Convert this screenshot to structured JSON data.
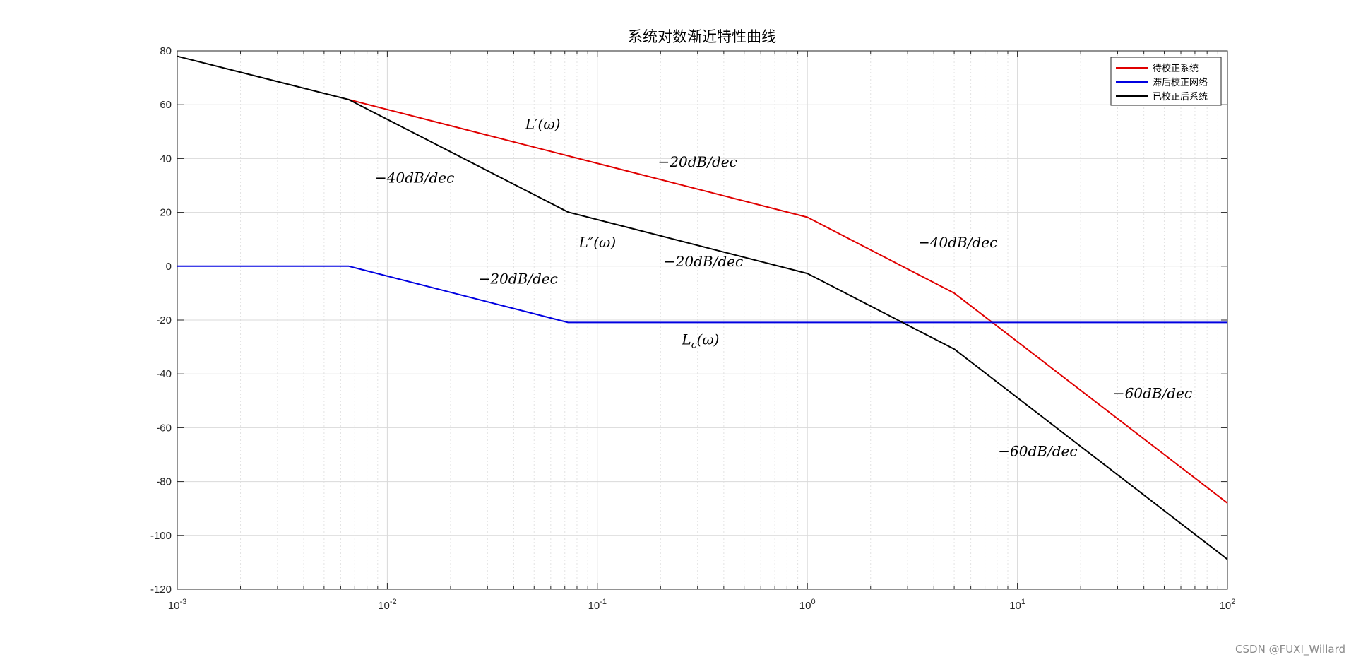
{
  "chart_data": {
    "type": "line",
    "title": "系统对数渐近特性曲线",
    "xlabel": "",
    "ylabel": "",
    "xscale": "log",
    "xlim": [
      0.001,
      100
    ],
    "ylim": [
      -120,
      80
    ],
    "x_ticks": [
      {
        "base": "10",
        "exp": "-3",
        "value": 0.001
      },
      {
        "base": "10",
        "exp": "-2",
        "value": 0.01
      },
      {
        "base": "10",
        "exp": "-1",
        "value": 0.1
      },
      {
        "base": "10",
        "exp": "0",
        "value": 1
      },
      {
        "base": "10",
        "exp": "1",
        "value": 10
      },
      {
        "base": "10",
        "exp": "2",
        "value": 100
      }
    ],
    "y_ticks": [
      {
        "label": "80",
        "value": 80
      },
      {
        "label": "60",
        "value": 60
      },
      {
        "label": "40",
        "value": 40
      },
      {
        "label": "20",
        "value": 20
      },
      {
        "label": "0",
        "value": 0
      },
      {
        "label": "-20",
        "value": -20
      },
      {
        "label": "-40",
        "value": -40
      },
      {
        "label": "-60",
        "value": -60
      },
      {
        "label": "-80",
        "value": -80
      },
      {
        "label": "-100",
        "value": -100
      },
      {
        "label": "-120",
        "value": -120
      }
    ],
    "grid": true,
    "legend_position": "top-right",
    "series": [
      {
        "name": "待校正系统",
        "color": "#e00000",
        "points": [
          [
            0.00656,
            61.9
          ],
          [
            1,
            18.2
          ],
          [
            5,
            -10.0
          ],
          [
            100,
            -88.0
          ]
        ]
      },
      {
        "name": "滞后校正网络",
        "color": "#0000e0",
        "points": [
          [
            0.001,
            0
          ],
          [
            0.00656,
            0
          ],
          [
            0.0725,
            -20.9
          ],
          [
            100,
            -20.9
          ]
        ]
      },
      {
        "name": "已校正后系统",
        "color": "#000000",
        "points": [
          [
            0.001,
            78.0
          ],
          [
            0.00656,
            61.9
          ],
          [
            0.0725,
            20.1
          ],
          [
            1,
            -2.7
          ],
          [
            5,
            -30.8
          ],
          [
            100,
            -108.9
          ]
        ]
      }
    ],
    "annotations": [
      {
        "text": "L′(ω)",
        "x": 0.055,
        "y": 51
      },
      {
        "text": "−20dB/dec",
        "x": 0.3,
        "y": 37
      },
      {
        "text": "−40dB/dec",
        "x": 0.0135,
        "y": 31
      },
      {
        "text": "L″(ω)",
        "x": 0.1,
        "y": 7
      },
      {
        "text": "−20dB/dec",
        "x": 0.32,
        "y": 0
      },
      {
        "text": "−40dB/dec",
        "x": 5.2,
        "y": 7
      },
      {
        "text": "−20dB/dec",
        "x": 0.042,
        "y": -6.5
      },
      {
        "text": "L_c(ω)",
        "x": 0.31,
        "y": -29
      },
      {
        "text": "−60dB/dec",
        "x": 44,
        "y": -49
      },
      {
        "text": "−60dB/dec",
        "x": 12.5,
        "y": -70.5
      }
    ]
  },
  "watermark": "CSDN @FUXI_Willard"
}
